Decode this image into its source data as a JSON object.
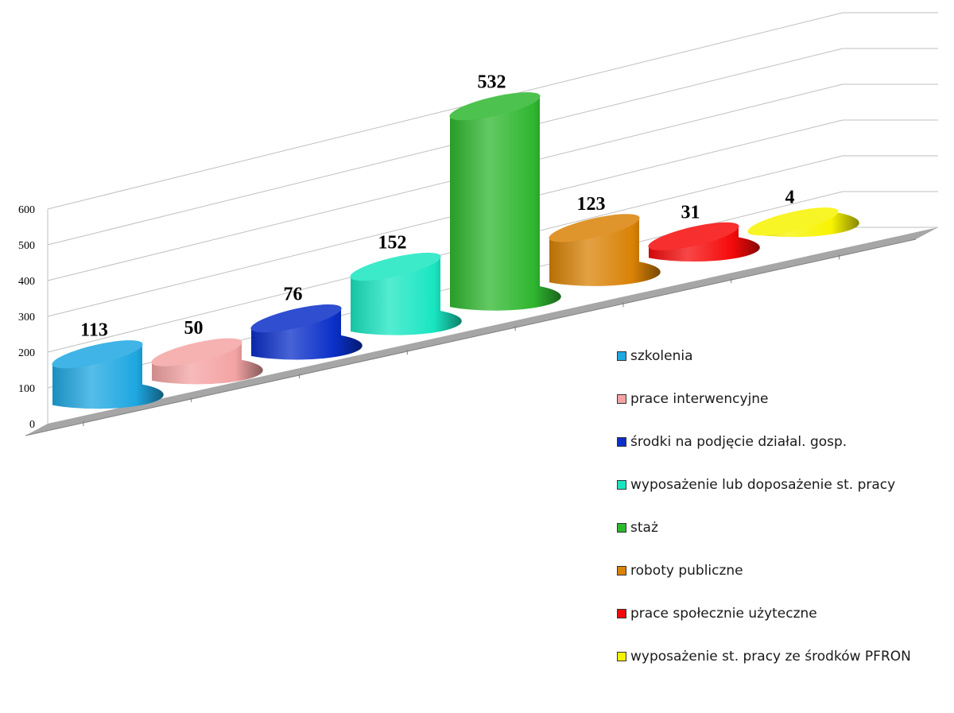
{
  "chart_data": {
    "type": "bar",
    "style": "3d-cylinder",
    "categories": [
      "szkolenia",
      "prace interwencyjne",
      "środki na podjęcie działal. gosp.",
      "wyposażenie lub doposażenie st. pracy",
      "staż",
      "roboty publiczne",
      "prace społecznie użyteczne",
      "wyposażenie st. pracy ze środków PFRON"
    ],
    "values": [
      113,
      50,
      76,
      152,
      532,
      123,
      31,
      4
    ],
    "data_labels": [
      "113",
      "50",
      "76",
      "152",
      "532",
      "123",
      "31",
      "4"
    ],
    "colors": [
      "#1ea7e1",
      "#f4a3a3",
      "#0a2fc8",
      "#19e6c1",
      "#2fb72f",
      "#d98206",
      "#f50a0a",
      "#f7f300"
    ],
    "ylim": [
      0,
      600
    ],
    "yticks": [
      "0",
      "100",
      "200",
      "300",
      "400",
      "500",
      "600"
    ],
    "grid": true,
    "legend_position": "right"
  }
}
